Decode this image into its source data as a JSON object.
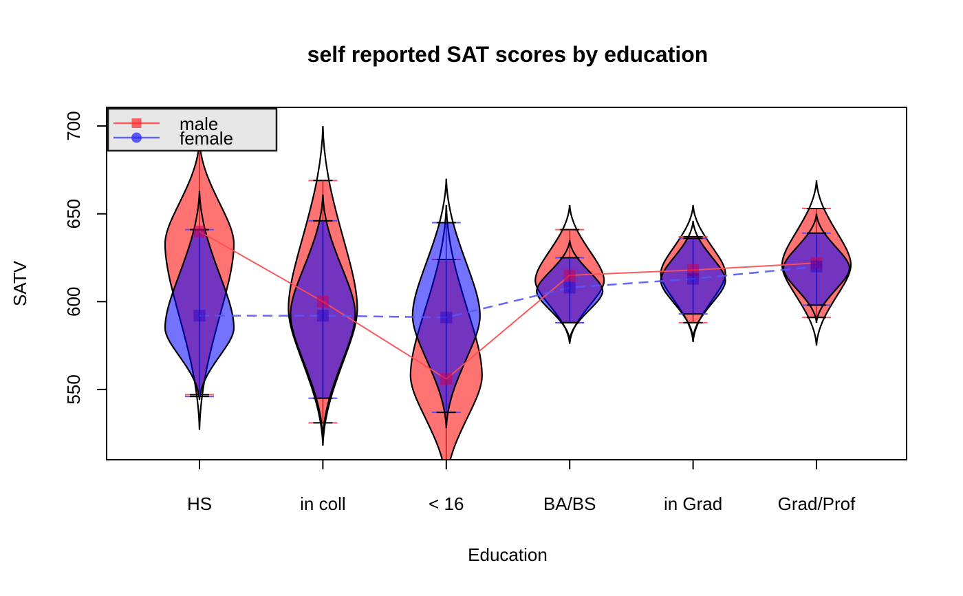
{
  "chart_data": {
    "type": "violin",
    "title": "self reported SAT scores by education",
    "xlabel": "Education",
    "ylabel": "SATV",
    "categories": [
      "HS",
      "in coll",
      "< 16",
      "BA/BS",
      "in Grad",
      "Grad/Prof"
    ],
    "y_ticks": [
      700,
      650,
      600,
      550
    ],
    "ylim": [
      510,
      711
    ],
    "grid": false,
    "legend": {
      "position": "top-left",
      "labels": [
        "male",
        "female"
      ],
      "text_color": "#0AA00A",
      "bg_color": "#E7E7E7",
      "border_color": "#1a1a1a"
    },
    "series": [
      {
        "name": "male",
        "marker": "square",
        "line_style": "solid",
        "fill_color": "rgba(255,0,0,0.55)",
        "trace_color": "rgba(252,80,80,0.95)",
        "cap_color": "rgba(255,70,70,0.9)",
        "center_line_color": "rgba(200,30,30,0.8)",
        "marker_color": "rgba(200,0,80,0.55)",
        "legend_marker_color": "rgba(255,40,40,0.7)",
        "medians": [
          640,
          600,
          556,
          615,
          618,
          622
        ],
        "violins": [
          {
            "range": [
              527,
              692
            ],
            "fill_range": [
              547,
              689
            ],
            "halfwidth": 50,
            "widest": 633
          },
          {
            "range": [
              518,
              700
            ],
            "fill_range": [
              531,
              669
            ],
            "halfwidth": 50,
            "widest": 596
          },
          {
            "range": [
              496,
              655
            ],
            "fill_range": [
              504,
              624
            ],
            "halfwidth": 52,
            "widest": 558
          },
          {
            "range": [
              576,
              655
            ],
            "fill_range": [
              588,
              641
            ],
            "halfwidth": 50,
            "widest": 612
          },
          {
            "range": [
              577,
              655
            ],
            "fill_range": [
              588,
              637
            ],
            "halfwidth": 47,
            "widest": 616
          },
          {
            "range": [
              575,
              669
            ],
            "fill_range": [
              591,
              653
            ],
            "halfwidth": 50,
            "widest": 621
          }
        ]
      },
      {
        "name": "female",
        "marker": "circle",
        "line_style": "dashed",
        "fill_color": "rgba(0,0,255,0.55)",
        "trace_color": "rgba(85,85,255,0.9)",
        "cap_color": "rgba(70,70,255,0.9)",
        "center_line_color": "rgba(30,30,210,0.85)",
        "marker_color": "rgba(30,0,200,0.45)",
        "legend_marker_color": "rgba(40,40,255,0.75)",
        "medians": [
          592,
          592,
          591,
          608,
          613,
          620
        ],
        "violins": [
          {
            "range": [
              544,
              663
            ],
            "fill_range": [
              546,
              641
            ],
            "halfwidth": 50,
            "widest": 585
          },
          {
            "range": [
              522,
              661
            ],
            "fill_range": [
              545,
              646
            ],
            "halfwidth": 47,
            "widest": 593
          },
          {
            "range": [
              528,
              670
            ],
            "fill_range": [
              537,
              645
            ],
            "halfwidth": 49,
            "widest": 592
          },
          {
            "range": [
              578,
              635
            ],
            "fill_range": [
              588,
              625
            ],
            "halfwidth": 48,
            "widest": 606
          },
          {
            "range": [
              579,
              646
            ],
            "fill_range": [
              593,
              636
            ],
            "halfwidth": 47,
            "widest": 612
          },
          {
            "range": [
              588,
              650
            ],
            "fill_range": [
              598,
              639
            ],
            "halfwidth": 48,
            "widest": 619
          }
        ]
      }
    ]
  }
}
